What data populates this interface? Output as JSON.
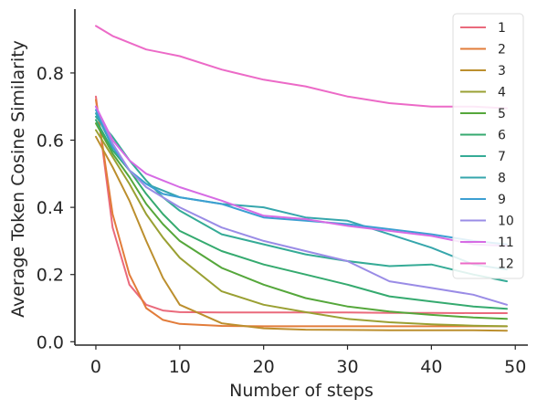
{
  "chart_data": {
    "type": "line",
    "title": "",
    "xlabel": "Number of steps",
    "ylabel": "Average Token Cosine Similarity",
    "xlim": [
      -2.5,
      51.5
    ],
    "ylim": [
      -0.01,
      0.99
    ],
    "xticks": [
      0,
      10,
      20,
      30,
      40,
      50
    ],
    "yticks": [
      0.0,
      0.2,
      0.4,
      0.6,
      0.8
    ],
    "xtick_labels": [
      "0",
      "10",
      "20",
      "30",
      "40",
      "50"
    ],
    "ytick_labels": [
      "0.0",
      "0.2",
      "0.4",
      "0.6",
      "0.8"
    ],
    "grid": false,
    "legend_position": "top-right",
    "x": [
      0,
      2,
      4,
      6,
      8,
      10,
      15,
      20,
      25,
      30,
      35,
      40,
      45,
      49
    ],
    "series": [
      {
        "name": "1",
        "color": "#ea6a7c",
        "values": [
          0.73,
          0.34,
          0.17,
          0.11,
          0.093,
          0.088,
          0.087,
          0.087,
          0.087,
          0.087,
          0.086,
          0.086,
          0.085,
          0.085
        ]
      },
      {
        "name": "2",
        "color": "#e27c3a",
        "values": [
          0.72,
          0.38,
          0.2,
          0.1,
          0.065,
          0.053,
          0.047,
          0.046,
          0.046,
          0.046,
          0.046,
          0.046,
          0.046,
          0.046
        ]
      },
      {
        "name": "3",
        "color": "#bc8f2e",
        "values": [
          0.61,
          0.52,
          0.42,
          0.3,
          0.19,
          0.11,
          0.055,
          0.04,
          0.036,
          0.035,
          0.034,
          0.034,
          0.034,
          0.033
        ]
      },
      {
        "name": "4",
        "color": "#9aa033",
        "values": [
          0.63,
          0.55,
          0.47,
          0.38,
          0.31,
          0.25,
          0.15,
          0.11,
          0.088,
          0.068,
          0.058,
          0.052,
          0.048,
          0.046
        ]
      },
      {
        "name": "5",
        "color": "#55a73b",
        "values": [
          0.65,
          0.56,
          0.49,
          0.41,
          0.35,
          0.3,
          0.22,
          0.17,
          0.13,
          0.105,
          0.09,
          0.08,
          0.072,
          0.068
        ]
      },
      {
        "name": "6",
        "color": "#35aa6f",
        "values": [
          0.66,
          0.57,
          0.51,
          0.44,
          0.38,
          0.33,
          0.27,
          0.23,
          0.2,
          0.17,
          0.135,
          0.12,
          0.105,
          0.098
        ]
      },
      {
        "name": "7",
        "color": "#35ab96",
        "values": [
          0.67,
          0.61,
          0.54,
          0.48,
          0.43,
          0.39,
          0.32,
          0.29,
          0.26,
          0.24,
          0.225,
          0.23,
          0.2,
          0.18
        ]
      },
      {
        "name": "8",
        "color": "#36a6ac",
        "values": [
          0.68,
          0.58,
          0.51,
          0.47,
          0.45,
          0.43,
          0.41,
          0.4,
          0.37,
          0.36,
          0.32,
          0.28,
          0.23,
          0.215
        ]
      },
      {
        "name": "9",
        "color": "#3c9fd2",
        "values": [
          0.69,
          0.58,
          0.51,
          0.47,
          0.44,
          0.43,
          0.41,
          0.37,
          0.36,
          0.35,
          0.335,
          0.32,
          0.3,
          0.29
        ]
      },
      {
        "name": "10",
        "color": "#9a8ce6",
        "values": [
          0.7,
          0.59,
          0.51,
          0.46,
          0.43,
          0.4,
          0.34,
          0.3,
          0.27,
          0.24,
          0.18,
          0.16,
          0.14,
          0.11
        ]
      },
      {
        "name": "11",
        "color": "#d66be4",
        "values": [
          0.7,
          0.6,
          0.54,
          0.5,
          0.48,
          0.46,
          0.42,
          0.375,
          0.365,
          0.345,
          0.33,
          0.315,
          0.29,
          0.285
        ]
      },
      {
        "name": "12",
        "color": "#ec6ac7",
        "values": [
          0.94,
          0.91,
          0.89,
          0.87,
          0.86,
          0.85,
          0.81,
          0.78,
          0.76,
          0.73,
          0.71,
          0.7,
          0.7,
          0.695
        ]
      }
    ]
  }
}
